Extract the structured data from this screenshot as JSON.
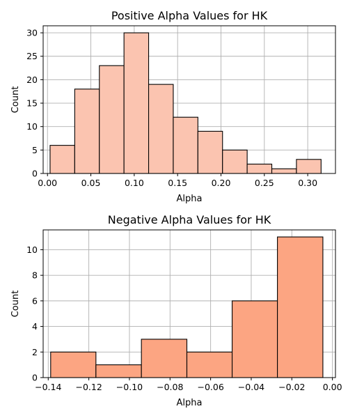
{
  "chart_data": [
    {
      "type": "bar",
      "title": "Positive Alpha Values for HK",
      "xlabel": "Alpha",
      "ylabel": "Count",
      "xlim": [
        -0.005,
        0.332
      ],
      "ylim": [
        0,
        31.5
      ],
      "xticks": [
        0.0,
        0.05,
        0.1,
        0.15,
        0.2,
        0.25,
        0.3
      ],
      "xtick_labels": [
        "0.00",
        "0.05",
        "0.10",
        "0.15",
        "0.20",
        "0.25",
        "0.30"
      ],
      "yticks": [
        0,
        5,
        10,
        15,
        20,
        25,
        30
      ],
      "ytick_labels": [
        "0",
        "5",
        "10",
        "15",
        "20",
        "25",
        "30"
      ],
      "bin_edges": [
        0.003,
        0.0314,
        0.0598,
        0.0882,
        0.1166,
        0.145,
        0.1734,
        0.2018,
        0.2302,
        0.2586,
        0.287,
        0.3154
      ],
      "counts": [
        6,
        18,
        23,
        30,
        19,
        12,
        9,
        5,
        2,
        1,
        3
      ],
      "grid": true,
      "color": "#fbc4b0",
      "edge_color": "#000000"
    },
    {
      "type": "bar",
      "title": "Negative Alpha Values for HK",
      "xlabel": "Alpha",
      "ylabel": "Count",
      "xlim": [
        -0.1425,
        0.0015
      ],
      "ylim": [
        0,
        11.55
      ],
      "xticks": [
        -0.14,
        -0.12,
        -0.1,
        -0.08,
        -0.06,
        -0.04,
        -0.02,
        0.0
      ],
      "xtick_labels": [
        "−0.14",
        "−0.12",
        "−0.10",
        "−0.08",
        "−0.06",
        "−0.04",
        "−0.02",
        "0.00"
      ],
      "yticks": [
        0,
        2,
        4,
        6,
        8,
        10
      ],
      "ytick_labels": [
        "0",
        "2",
        "4",
        "6",
        "8",
        "10"
      ],
      "bin_edges": [
        -0.1388,
        -0.1165,
        -0.0941,
        -0.0717,
        -0.0494,
        -0.0271,
        -0.0047
      ],
      "counts": [
        2,
        1,
        3,
        2,
        6,
        11
      ],
      "grid": true,
      "color": "#fca582",
      "edge_color": "#000000"
    }
  ]
}
